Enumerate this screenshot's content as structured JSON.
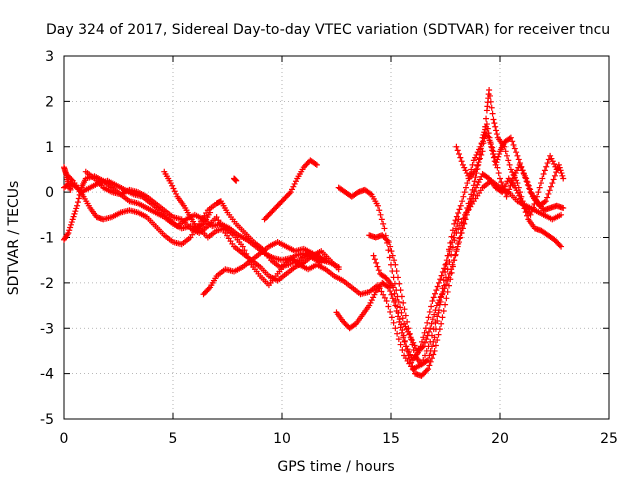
{
  "chart_data": {
    "type": "scatter",
    "title": "Day 324 of 2017, Sidereal Day-to-day VTEC variation (SDTVAR) for receiver tncu",
    "xlabel": "GPS time / hours",
    "ylabel": "SDTVAR / TECUs",
    "xlim": [
      0,
      25
    ],
    "ylim": [
      -5,
      3
    ],
    "xticks": [
      "0",
      "5",
      "10",
      "15",
      "20",
      "25"
    ],
    "yticks": [
      "-5",
      "-4",
      "-3",
      "-2",
      "-1",
      "0",
      "1",
      "2",
      "3"
    ],
    "grid": true,
    "marker": "plus",
    "color": "#ff0000",
    "traces": [
      [
        [
          0.0,
          -1.05
        ],
        [
          0.2,
          -0.9
        ],
        [
          0.4,
          -0.6
        ],
        [
          0.6,
          -0.3
        ],
        [
          0.8,
          0.1
        ],
        [
          1.0,
          0.3
        ],
        [
          1.4,
          0.35
        ],
        [
          1.8,
          0.25
        ],
        [
          2.2,
          0.1
        ],
        [
          2.6,
          -0.05
        ],
        [
          3.0,
          -0.2
        ],
        [
          3.4,
          -0.25
        ],
        [
          3.8,
          -0.35
        ],
        [
          4.2,
          -0.45
        ],
        [
          4.6,
          -0.55
        ],
        [
          5.0,
          -0.7
        ],
        [
          5.4,
          -0.8
        ],
        [
          5.8,
          -0.75
        ],
        [
          6.2,
          -0.8
        ],
        [
          6.6,
          -1.0
        ],
        [
          7.0,
          -0.85
        ],
        [
          7.4,
          -0.8
        ],
        [
          7.8,
          -0.95
        ],
        [
          8.2,
          -1.2
        ],
        [
          8.6,
          -1.6
        ],
        [
          9.0,
          -1.85
        ],
        [
          9.4,
          -2.05
        ],
        [
          9.8,
          -1.8
        ],
        [
          10.2,
          -1.55
        ],
        [
          10.6,
          -1.4
        ],
        [
          11.0,
          -1.35
        ],
        [
          11.4,
          -1.45
        ],
        [
          11.8,
          -1.55
        ]
      ],
      [
        [
          0.0,
          0.1
        ],
        [
          0.3,
          0.2
        ],
        [
          0.6,
          0.1
        ],
        [
          0.9,
          -0.1
        ],
        [
          1.2,
          -0.35
        ],
        [
          1.5,
          -0.55
        ],
        [
          1.8,
          -0.6
        ],
        [
          2.2,
          -0.55
        ],
        [
          2.6,
          -0.45
        ],
        [
          3.0,
          -0.4
        ],
        [
          3.4,
          -0.45
        ],
        [
          3.8,
          -0.55
        ],
        [
          4.2,
          -0.75
        ],
        [
          4.6,
          -0.95
        ],
        [
          5.0,
          -1.1
        ],
        [
          5.4,
          -1.15
        ],
        [
          5.8,
          -1.0
        ],
        [
          6.2,
          -0.7
        ],
        [
          6.6,
          -0.4
        ],
        [
          7.0,
          -0.25
        ],
        [
          7.2,
          -0.2
        ],
        [
          7.5,
          -0.45
        ],
        [
          7.9,
          -0.7
        ],
        [
          8.3,
          -0.9
        ],
        [
          8.7,
          -1.1
        ],
        [
          9.1,
          -1.25
        ],
        [
          9.5,
          -1.5
        ],
        [
          9.9,
          -1.65
        ],
        [
          10.3,
          -1.6
        ],
        [
          10.8,
          -1.5
        ],
        [
          11.2,
          -1.35
        ],
        [
          11.6,
          -1.4
        ],
        [
          12.0,
          -1.5
        ]
      ],
      [
        [
          0.1,
          0.4
        ],
        [
          0.4,
          0.25
        ],
        [
          0.8,
          0.0
        ],
        [
          1.2,
          0.1
        ],
        [
          1.6,
          0.2
        ],
        [
          2.0,
          0.25
        ],
        [
          2.4,
          0.15
        ],
        [
          2.8,
          0.05
        ],
        [
          3.2,
          -0.05
        ],
        [
          3.6,
          -0.1
        ],
        [
          4.0,
          -0.25
        ],
        [
          4.4,
          -0.4
        ],
        [
          4.8,
          -0.6
        ],
        [
          5.2,
          -0.75
        ],
        [
          5.6,
          -0.6
        ],
        [
          6.0,
          -0.5
        ],
        [
          6.4,
          -0.6
        ],
        [
          6.8,
          -0.75
        ],
        [
          7.2,
          -0.7
        ],
        [
          7.6,
          -0.8
        ],
        [
          8.0,
          -0.95
        ],
        [
          8.4,
          -1.05
        ],
        [
          8.8,
          -1.2
        ],
        [
          9.2,
          -1.35
        ],
        [
          9.6,
          -1.45
        ],
        [
          10.0,
          -1.5
        ],
        [
          10.4,
          -1.45
        ],
        [
          10.8,
          -1.6
        ],
        [
          11.2,
          -1.7
        ],
        [
          11.6,
          -1.6
        ],
        [
          12.0,
          -1.7
        ],
        [
          12.4,
          -1.85
        ],
        [
          12.8,
          -1.95
        ],
        [
          13.2,
          -2.1
        ],
        [
          13.6,
          -2.25
        ],
        [
          14.0,
          -2.2
        ],
        [
          14.4,
          -2.05
        ],
        [
          14.8,
          -2.4
        ],
        [
          15.2,
          -3.0
        ],
        [
          15.6,
          -3.6
        ],
        [
          16.0,
          -3.9
        ],
        [
          16.4,
          -3.8
        ],
        [
          16.8,
          -3.3
        ],
        [
          17.2,
          -2.6
        ],
        [
          17.6,
          -1.7
        ],
        [
          18.0,
          -0.9
        ],
        [
          18.4,
          -0.5
        ],
        [
          18.8,
          -0.2
        ],
        [
          19.2,
          0.1
        ],
        [
          19.6,
          0.25
        ],
        [
          20.0,
          0.1
        ],
        [
          20.4,
          0.0
        ],
        [
          20.8,
          -0.2
        ],
        [
          21.2,
          -0.3
        ],
        [
          21.6,
          -0.4
        ],
        [
          22.0,
          -0.5
        ],
        [
          22.4,
          -0.6
        ],
        [
          22.8,
          -0.5
        ]
      ],
      [
        [
          1.0,
          0.45
        ],
        [
          1.4,
          0.3
        ],
        [
          1.8,
          0.1
        ],
        [
          2.2,
          0.0
        ],
        [
          2.6,
          -0.05
        ],
        [
          3.0,
          0.05
        ],
        [
          3.4,
          0.0
        ],
        [
          3.8,
          -0.1
        ],
        [
          4.2,
          -0.25
        ],
        [
          4.6,
          -0.4
        ],
        [
          5.0,
          -0.55
        ],
        [
          5.4,
          -0.6
        ],
        [
          5.8,
          -0.8
        ],
        [
          6.2,
          -0.9
        ],
        [
          6.6,
          -0.75
        ],
        [
          7.0,
          -0.55
        ],
        [
          7.4,
          -0.9
        ],
        [
          7.8,
          -1.2
        ],
        [
          8.2,
          -1.35
        ],
        [
          8.6,
          -1.5
        ],
        [
          9.0,
          -1.65
        ],
        [
          9.4,
          -1.85
        ],
        [
          9.8,
          -1.95
        ],
        [
          10.2,
          -1.8
        ],
        [
          10.6,
          -1.65
        ],
        [
          11.0,
          -1.55
        ],
        [
          11.4,
          -1.4
        ],
        [
          11.8,
          -1.3
        ],
        [
          12.2,
          -1.5
        ],
        [
          12.6,
          -1.7
        ]
      ],
      [
        [
          4.6,
          0.45
        ],
        [
          4.9,
          0.2
        ],
        [
          5.2,
          -0.1
        ],
        [
          5.5,
          -0.3
        ],
        [
          5.8,
          -0.55
        ],
        [
          6.1,
          -0.8
        ],
        [
          6.4,
          -0.7
        ],
        [
          6.7,
          -0.45
        ]
      ],
      [
        [
          6.4,
          -2.25
        ],
        [
          6.7,
          -2.1
        ],
        [
          7.0,
          -1.85
        ],
        [
          7.4,
          -1.7
        ],
        [
          7.8,
          -1.75
        ],
        [
          8.2,
          -1.65
        ],
        [
          8.6,
          -1.5
        ],
        [
          9.0,
          -1.35
        ],
        [
          9.4,
          -1.2
        ],
        [
          9.8,
          -1.1
        ],
        [
          10.2,
          -1.2
        ],
        [
          10.6,
          -1.3
        ],
        [
          11.0,
          -1.25
        ],
        [
          11.4,
          -1.35
        ],
        [
          11.8,
          -1.5
        ],
        [
          12.2,
          -1.55
        ],
        [
          12.6,
          -1.65
        ]
      ],
      [
        [
          9.2,
          -0.6
        ],
        [
          9.5,
          -0.45
        ],
        [
          9.8,
          -0.3
        ],
        [
          10.1,
          -0.15
        ],
        [
          10.4,
          0.0
        ],
        [
          10.7,
          0.3
        ],
        [
          11.0,
          0.55
        ],
        [
          11.3,
          0.7
        ],
        [
          11.6,
          0.6
        ]
      ],
      [
        [
          12.5,
          -2.65
        ],
        [
          12.8,
          -2.85
        ],
        [
          13.1,
          -3.0
        ],
        [
          13.4,
          -2.9
        ],
        [
          13.7,
          -2.7
        ],
        [
          14.0,
          -2.5
        ],
        [
          14.3,
          -2.2
        ],
        [
          14.6,
          -2.0
        ],
        [
          14.9,
          -2.1
        ],
        [
          15.2,
          -2.5
        ],
        [
          15.5,
          -3.1
        ],
        [
          15.8,
          -3.6
        ],
        [
          16.1,
          -4.0
        ],
        [
          16.4,
          -4.05
        ],
        [
          16.7,
          -3.9
        ],
        [
          17.0,
          -3.5
        ],
        [
          17.3,
          -2.9
        ],
        [
          17.6,
          -2.2
        ],
        [
          17.9,
          -1.5
        ],
        [
          18.2,
          -0.9
        ],
        [
          18.5,
          -0.35
        ],
        [
          18.8,
          0.15
        ],
        [
          19.0,
          0.6
        ],
        [
          19.2,
          1.2
        ],
        [
          19.4,
          1.5
        ],
        [
          19.6,
          1.0
        ],
        [
          19.8,
          0.6
        ],
        [
          20.0,
          0.9
        ],
        [
          20.2,
          1.1
        ],
        [
          20.5,
          1.2
        ],
        [
          20.8,
          0.8
        ],
        [
          21.1,
          0.4
        ],
        [
          21.4,
          0.0
        ],
        [
          21.7,
          -0.2
        ],
        [
          22.0,
          -0.4
        ],
        [
          22.3,
          -0.35
        ],
        [
          22.6,
          -0.3
        ],
        [
          22.9,
          -0.35
        ]
      ],
      [
        [
          12.6,
          0.1
        ],
        [
          12.9,
          0.0
        ],
        [
          13.2,
          -0.1
        ],
        [
          13.5,
          0.0
        ],
        [
          13.8,
          0.05
        ],
        [
          14.1,
          -0.05
        ],
        [
          14.4,
          -0.3
        ],
        [
          14.7,
          -0.8
        ],
        [
          15.0,
          -1.6
        ],
        [
          15.3,
          -2.3
        ],
        [
          15.6,
          -2.9
        ],
        [
          15.9,
          -3.2
        ],
        [
          16.2,
          -3.5
        ],
        [
          16.5,
          -3.4
        ],
        [
          16.8,
          -3.0
        ],
        [
          17.1,
          -2.5
        ],
        [
          17.4,
          -2.2
        ],
        [
          17.7,
          -1.8
        ],
        [
          18.0,
          -1.3
        ],
        [
          18.3,
          -0.8
        ],
        [
          18.6,
          -0.3
        ],
        [
          18.9,
          0.1
        ],
        [
          19.2,
          0.4
        ],
        [
          19.5,
          0.3
        ],
        [
          19.8,
          0.1
        ],
        [
          20.1,
          0.0
        ],
        [
          20.4,
          0.3
        ],
        [
          20.7,
          0.1
        ],
        [
          21.0,
          -0.2
        ],
        [
          21.3,
          -0.6
        ],
        [
          21.6,
          -0.8
        ],
        [
          21.9,
          -0.85
        ],
        [
          22.2,
          -0.95
        ],
        [
          22.5,
          -1.05
        ],
        [
          22.8,
          -1.2
        ]
      ],
      [
        [
          14.0,
          -0.95
        ],
        [
          14.3,
          -1.0
        ],
        [
          14.6,
          -0.95
        ],
        [
          14.9,
          -1.1
        ],
        [
          15.2,
          -1.6
        ],
        [
          15.5,
          -2.3
        ],
        [
          15.8,
          -3.0
        ],
        [
          16.1,
          -3.6
        ],
        [
          16.4,
          -3.8
        ],
        [
          16.7,
          -3.7
        ],
        [
          17.0,
          -3.2
        ],
        [
          17.3,
          -2.3
        ],
        [
          17.6,
          -1.4
        ],
        [
          17.9,
          -0.7
        ],
        [
          18.2,
          -0.3
        ],
        [
          18.5,
          0.2
        ],
        [
          18.8,
          0.7
        ],
        [
          19.1,
          1.0
        ],
        [
          19.4,
          1.3
        ],
        [
          19.7,
          0.9
        ],
        [
          20.0,
          0.3
        ],
        [
          20.3,
          -0.1
        ],
        [
          20.6,
          0.3
        ],
        [
          20.9,
          0.6
        ],
        [
          21.2,
          0.3
        ],
        [
          21.5,
          -0.1
        ],
        [
          21.8,
          -0.3
        ],
        [
          22.1,
          -0.2
        ],
        [
          22.4,
          0.2
        ],
        [
          22.7,
          0.6
        ],
        [
          22.9,
          0.3
        ]
      ],
      [
        [
          18.0,
          1.0
        ],
        [
          18.3,
          0.6
        ],
        [
          18.6,
          0.3
        ],
        [
          18.9,
          0.5
        ],
        [
          19.2,
          0.9
        ],
        [
          19.4,
          1.8
        ],
        [
          19.5,
          2.25
        ],
        [
          19.7,
          1.6
        ],
        [
          19.9,
          1.2
        ],
        [
          20.2,
          1.0
        ],
        [
          20.5,
          0.5
        ],
        [
          20.8,
          0.2
        ],
        [
          21.1,
          -0.3
        ],
        [
          21.4,
          -0.5
        ],
        [
          21.7,
          -0.1
        ],
        [
          22.0,
          0.4
        ],
        [
          22.3,
          0.8
        ],
        [
          22.6,
          0.5
        ]
      ],
      [
        [
          14.2,
          -1.4
        ],
        [
          14.5,
          -1.8
        ],
        [
          14.8,
          -1.9
        ],
        [
          15.1,
          -2.1
        ],
        [
          15.4,
          -2.8
        ],
        [
          15.7,
          -3.4
        ],
        [
          16.0,
          -3.7
        ],
        [
          16.3,
          -3.5
        ],
        [
          16.6,
          -3.0
        ],
        [
          16.9,
          -2.4
        ],
        [
          17.2,
          -2.0
        ],
        [
          17.5,
          -1.6
        ],
        [
          17.8,
          -1.1
        ],
        [
          18.1,
          -0.6
        ]
      ],
      [
        [
          7.8,
          0.3
        ],
        [
          7.9,
          0.25
        ]
      ],
      [
        [
          0.0,
          0.55
        ],
        [
          0.1,
          0.4
        ],
        [
          0.2,
          0.2
        ],
        [
          0.3,
          0.05
        ]
      ]
    ]
  }
}
